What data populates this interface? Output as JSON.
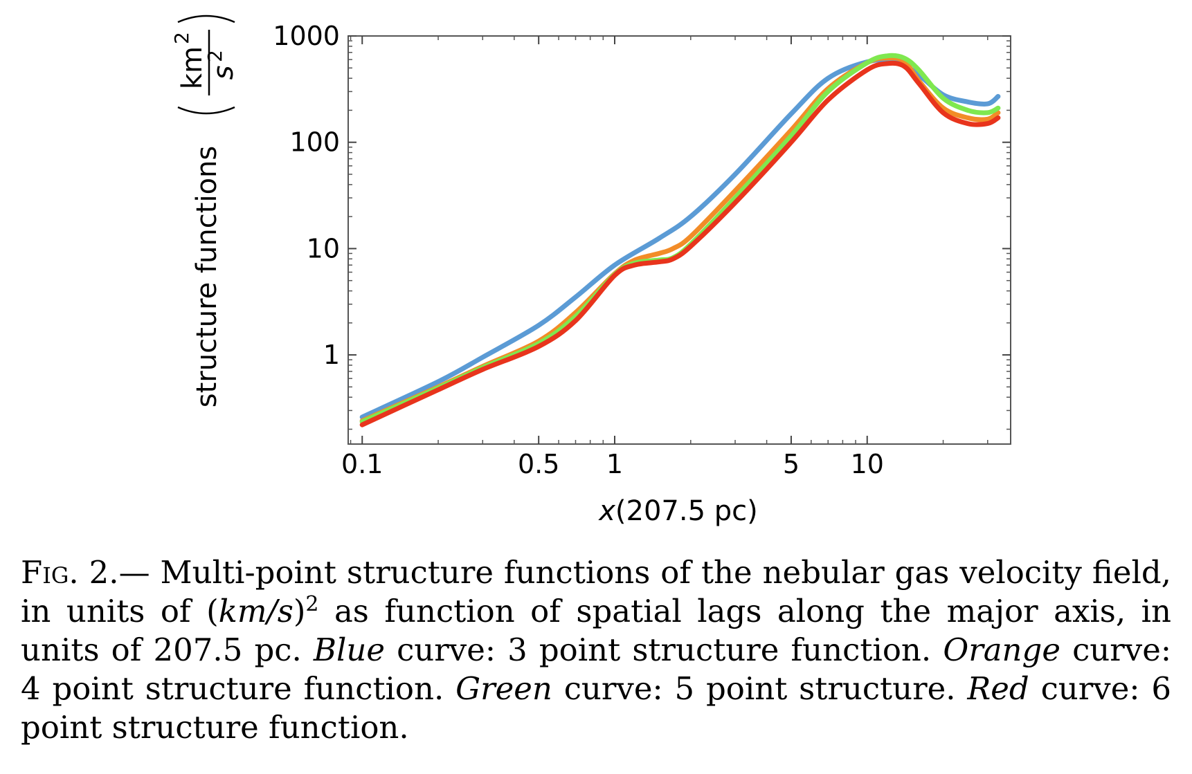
{
  "chart_data": {
    "type": "line",
    "xscale": "log",
    "yscale": "log",
    "xlim": [
      0.088,
      37
    ],
    "ylim": [
      0.145,
      1000
    ],
    "xticks": [
      {
        "value": 0.1,
        "label": "0.1"
      },
      {
        "value": 0.5,
        "label": "0.5"
      },
      {
        "value": 1,
        "label": "1"
      },
      {
        "value": 5,
        "label": "5"
      },
      {
        "value": 10,
        "label": "10"
      }
    ],
    "yticks": [
      {
        "value": 1,
        "label": "1"
      },
      {
        "value": 10,
        "label": "10"
      },
      {
        "value": 100,
        "label": "100"
      },
      {
        "value": 1000,
        "label": "1000"
      }
    ],
    "xlabel": {
      "var": "x",
      "rest": "(207.5 pc)"
    },
    "ylabel": {
      "text": "structure functions",
      "num": "km",
      "num_exp": "2",
      "den": "s",
      "den_exp": "2"
    },
    "series": [
      {
        "color": "#5b9bd5",
        "x": [
          0.1,
          0.2,
          0.3,
          0.5,
          0.7,
          1.0,
          1.5,
          2.0,
          3.0,
          5.0,
          7.0,
          10.0,
          13.0,
          16.0,
          20.0,
          25.0,
          30.0,
          33.0
        ],
        "y": [
          0.26,
          0.56,
          0.95,
          1.9,
          3.5,
          7.0,
          12.5,
          20,
          50,
          185,
          400,
          570,
          580,
          430,
          280,
          240,
          230,
          270
        ]
      },
      {
        "color": "#f28c28",
        "x": [
          0.1,
          0.2,
          0.3,
          0.5,
          0.7,
          1.0,
          1.2,
          1.5,
          1.7,
          2.0,
          3.0,
          5.0,
          7.0,
          10.0,
          12.0,
          14.0,
          16.0,
          20.0,
          25.0,
          30.0,
          33.0
        ],
        "y": [
          0.24,
          0.5,
          0.78,
          1.35,
          2.5,
          5.8,
          7.8,
          9,
          10,
          13,
          35,
          130,
          320,
          560,
          620,
          580,
          380,
          210,
          170,
          165,
          190
        ]
      },
      {
        "color": "#7fe84f",
        "x": [
          0.1,
          0.2,
          0.3,
          0.5,
          0.7,
          1.0,
          1.2,
          1.5,
          1.7,
          2.0,
          3.0,
          5.0,
          7.0,
          10.0,
          12.0,
          14.0,
          16.0,
          20.0,
          25.0,
          30.0,
          33.0
        ],
        "y": [
          0.235,
          0.49,
          0.76,
          1.28,
          2.3,
          5.7,
          7.3,
          7.8,
          8.2,
          11,
          30,
          115,
          300,
          560,
          650,
          620,
          480,
          260,
          200,
          190,
          210
        ]
      },
      {
        "color": "#e8341c",
        "x": [
          0.1,
          0.2,
          0.3,
          0.5,
          0.7,
          1.0,
          1.2,
          1.5,
          1.7,
          2.0,
          3.0,
          5.0,
          7.0,
          10.0,
          12.0,
          14.0,
          16.0,
          20.0,
          25.0,
          30.0,
          33.0
        ],
        "y": [
          0.22,
          0.47,
          0.73,
          1.2,
          2.1,
          5.6,
          7.0,
          7.5,
          8.0,
          10.5,
          27,
          100,
          250,
          480,
          550,
          520,
          360,
          190,
          150,
          150,
          170
        ]
      }
    ]
  },
  "caption": {
    "label": "Fig. 2.—",
    "text1": " Multi-point structure functions of the nebular gas velocity field, in units of ",
    "math_open": "(",
    "math_body": "km/s",
    "math_close": ")",
    "math_exp": "2",
    "text2": " as function of spatial lags along the major axis, in units of 207.5 pc. ",
    "blue": "Blue",
    "blue_text": " curve: 3 point structure function. ",
    "orange": "Orange",
    "orange_text": " curve: 4 point structure function. ",
    "green": "Green",
    "green_text": " curve: 5 point structure. ",
    "red": "Red",
    "red_text": " curve: 6 point structure function."
  }
}
